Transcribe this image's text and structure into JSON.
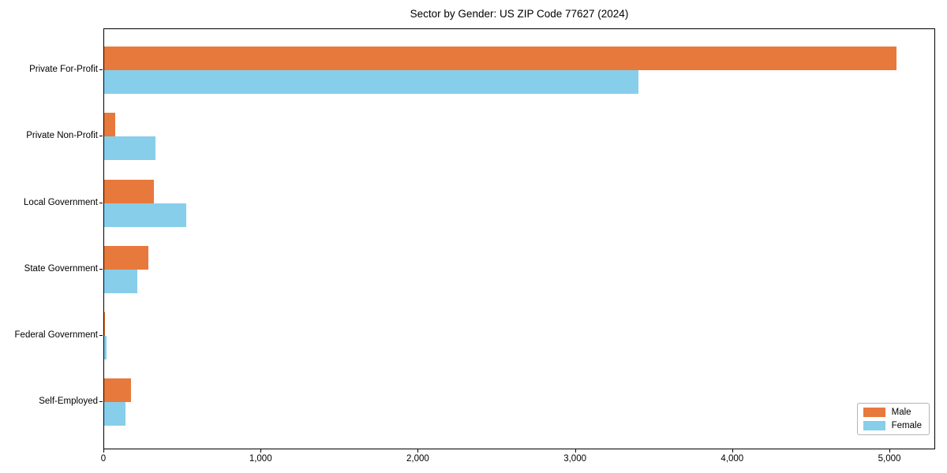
{
  "title": "Sector by Gender: US ZIP Code 77627 (2024)",
  "chart_data": {
    "type": "bar",
    "orientation": "horizontal",
    "title": "Sector by Gender: US ZIP Code 77627 (2024)",
    "categories": [
      "Private For-Profit",
      "Private Non-Profit",
      "Local Government",
      "State Government",
      "Federal Government",
      "Self-Employed"
    ],
    "series": [
      {
        "name": "Male",
        "color": "#e8793c",
        "values": [
          5040,
          70,
          315,
          280,
          5,
          170
        ]
      },
      {
        "name": "Female",
        "color": "#87ceeb",
        "values": [
          3400,
          325,
          520,
          210,
          15,
          135
        ]
      }
    ],
    "xlabel": "",
    "ylabel": "",
    "xlim": [
      0,
      5291
    ],
    "xticks": {
      "values": [
        0,
        1000,
        2000,
        3000,
        4000,
        5000
      ],
      "labels": [
        "0",
        "1,000",
        "2,000",
        "3,000",
        "4,000",
        "5,000"
      ]
    },
    "legend": {
      "position": "lower right",
      "entries": [
        {
          "label": "Male",
          "color": "#e8793c"
        },
        {
          "label": "Female",
          "color": "#87ceeb"
        }
      ]
    },
    "grid": false,
    "axis_color": "#000000",
    "background_color": "#ffffff"
  }
}
